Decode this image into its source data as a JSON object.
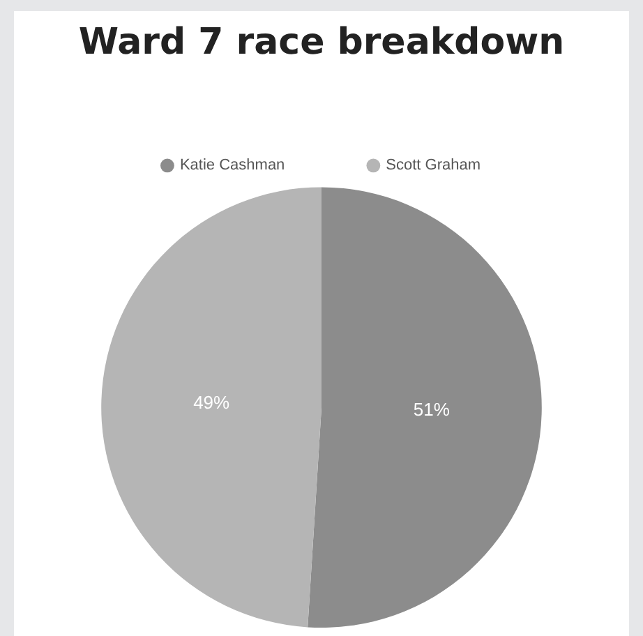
{
  "chart_data": {
    "type": "pie",
    "title": "Ward 7 race breakdown",
    "categories": [
      "Katie Cashman",
      "Scott Graham"
    ],
    "values": [
      51,
      49
    ],
    "colors": [
      "#8c8c8c",
      "#b5b5b5"
    ],
    "value_labels": [
      "51%",
      "49%"
    ],
    "legend": "top"
  }
}
